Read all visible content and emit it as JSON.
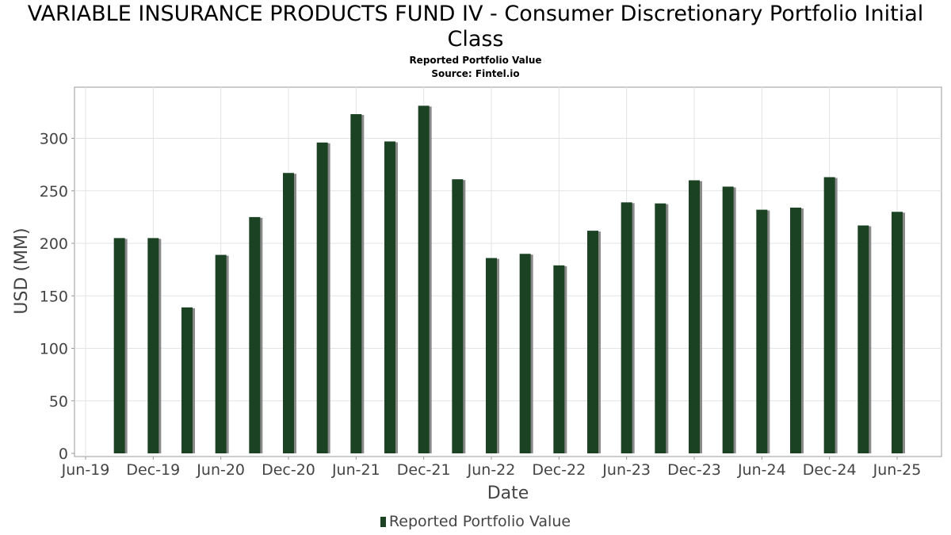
{
  "title": "VARIABLE INSURANCE PRODUCTS FUND IV - Consumer Discretionary Portfolio Initial Class",
  "subtitle": "Reported Portfolio Value",
  "source": "Source: Fintel.io",
  "colors": {
    "bar": "#1a4223",
    "shadow": "#8a8a8a",
    "grid": "#e3e3e3",
    "axis": "#999999"
  },
  "chart_data": {
    "type": "bar",
    "title": "VARIABLE INSURANCE PRODUCTS FUND IV - Consumer Discretionary Portfolio Initial Class",
    "subtitle": "Reported Portfolio Value",
    "xlabel": "Date",
    "ylabel": "USD (MM)",
    "ylim": [
      0,
      350
    ],
    "yticks": [
      0,
      50,
      100,
      150,
      200,
      250,
      300
    ],
    "xlim": [
      "2019-06",
      "2025-11"
    ],
    "xticks": [
      "Jun-19",
      "Dec-19",
      "Jun-20",
      "Dec-20",
      "Jun-21",
      "Dec-21",
      "Jun-22",
      "Dec-22",
      "Jun-23",
      "Dec-23",
      "Jun-24",
      "Dec-24",
      "Jun-25"
    ],
    "grid": true,
    "legend": "bottom",
    "series": [
      {
        "name": "Reported Portfolio Value",
        "points": [
          {
            "date": "2019-09",
            "value": 205
          },
          {
            "date": "2019-12",
            "value": 205
          },
          {
            "date": "2020-03",
            "value": 139
          },
          {
            "date": "2020-06",
            "value": 189
          },
          {
            "date": "2020-09",
            "value": 225
          },
          {
            "date": "2020-12",
            "value": 267
          },
          {
            "date": "2021-03",
            "value": 296
          },
          {
            "date": "2021-06",
            "value": 323
          },
          {
            "date": "2021-09",
            "value": 297
          },
          {
            "date": "2021-12",
            "value": 331
          },
          {
            "date": "2022-03",
            "value": 261
          },
          {
            "date": "2022-06",
            "value": 186
          },
          {
            "date": "2022-09",
            "value": 190
          },
          {
            "date": "2022-12",
            "value": 179
          },
          {
            "date": "2023-03",
            "value": 212
          },
          {
            "date": "2023-06",
            "value": 239
          },
          {
            "date": "2023-09",
            "value": 238
          },
          {
            "date": "2023-12",
            "value": 260
          },
          {
            "date": "2024-03",
            "value": 254
          },
          {
            "date": "2024-06",
            "value": 232
          },
          {
            "date": "2024-09",
            "value": 234
          },
          {
            "date": "2024-12",
            "value": 263
          },
          {
            "date": "2025-03",
            "value": 217
          },
          {
            "date": "2025-06",
            "value": 230
          }
        ]
      }
    ]
  }
}
